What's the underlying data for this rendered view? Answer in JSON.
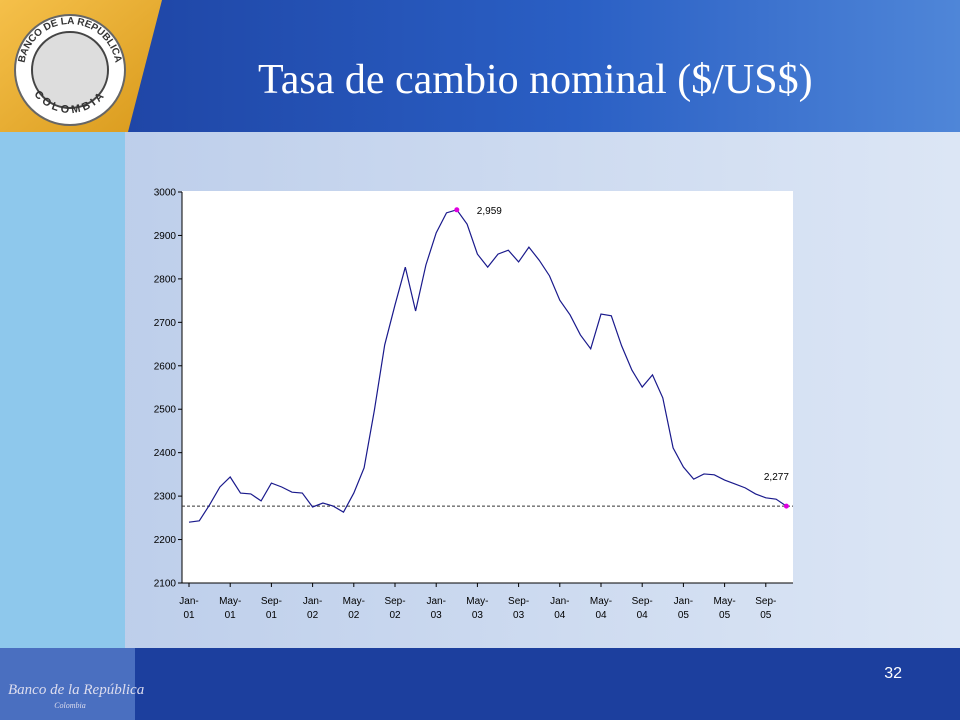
{
  "slide": {
    "title": "Tasa de cambio nominal ($/US$)",
    "page_number": "32",
    "logo": {
      "top": "BANCO DE LA REPUBLICA",
      "bottom": "COLOMBIA"
    },
    "footer": {
      "name": "Banco de la República",
      "country": "Colombia"
    }
  },
  "chart_data": {
    "type": "line",
    "color": "#1a1a8c",
    "highlight_color": "#e000e0",
    "categories": [
      "Jan-01",
      null,
      null,
      null,
      "May-01",
      null,
      null,
      null,
      "Sep-01",
      null,
      null,
      null,
      "Jan-02",
      null,
      null,
      null,
      "May-02",
      null,
      null,
      null,
      "Sep-02",
      null,
      null,
      null,
      "Jan-03",
      null,
      null,
      null,
      "May-03",
      null,
      null,
      null,
      "Sep-03",
      null,
      null,
      null,
      "Jan-04",
      null,
      null,
      null,
      "May-04",
      null,
      null,
      null,
      "Sep-04",
      null,
      null,
      null,
      "Jan-05",
      null,
      null,
      null,
      "May-05",
      null,
      null,
      null,
      "Sep-05",
      null,
      null
    ],
    "values": [
      2240,
      2243,
      2280,
      2321,
      2344,
      2307,
      2305,
      2289,
      2330,
      2321,
      2309,
      2307,
      2275,
      2284,
      2277,
      2263,
      2307,
      2365,
      2498,
      2648,
      2740,
      2827,
      2726,
      2832,
      2906,
      2952,
      2959,
      2926,
      2857,
      2827,
      2857,
      2866,
      2839,
      2873,
      2843,
      2807,
      2751,
      2717,
      2671,
      2639,
      2719,
      2715,
      2646,
      2590,
      2551,
      2579,
      2526,
      2411,
      2367,
      2339,
      2351,
      2349,
      2337,
      2328,
      2319,
      2305,
      2296,
      2293,
      2277
    ],
    "value_labels": [
      null,
      null,
      null,
      null,
      null,
      null,
      null,
      null,
      null,
      null,
      null,
      null,
      null,
      null,
      null,
      null,
      null,
      null,
      null,
      null,
      null,
      null,
      null,
      null,
      null,
      null,
      "2,959",
      null,
      null,
      null,
      null,
      null,
      null,
      null,
      null,
      null,
      null,
      null,
      null,
      null,
      null,
      null,
      null,
      null,
      null,
      null,
      null,
      null,
      null,
      null,
      null,
      null,
      null,
      null,
      null,
      null,
      null,
      null,
      "2,277"
    ],
    "ylim": [
      2100,
      3000
    ],
    "yticks": [
      2100,
      2200,
      2300,
      2400,
      2500,
      2600,
      2700,
      2800,
      2900,
      3000
    ]
  }
}
